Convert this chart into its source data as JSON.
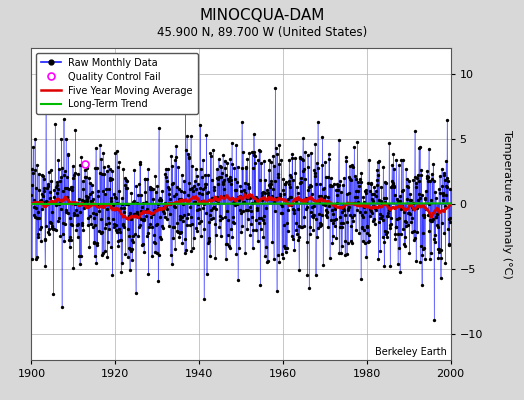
{
  "title": "MINOCQUA-DAM",
  "subtitle": "45.900 N, 89.700 W (United States)",
  "ylabel": "Temperature Anomaly (°C)",
  "xlabel_watermark": "Berkeley Earth",
  "x_start": 1900,
  "x_end": 2000,
  "ylim": [
    -12,
    12
  ],
  "yticks": [
    -10,
    -5,
    0,
    5,
    10
  ],
  "xticks": [
    1900,
    1920,
    1940,
    1960,
    1980,
    2000
  ],
  "bg_color": "#d8d8d8",
  "plot_bg_color": "#ffffff",
  "grid_color": "#b0b0b0",
  "raw_line_color": "#1a1aff",
  "raw_dot_color": "#000000",
  "qc_fail_color": "#ff00ff",
  "moving_avg_color": "#dd0000",
  "trend_color": "#00bb00",
  "seed": 17
}
